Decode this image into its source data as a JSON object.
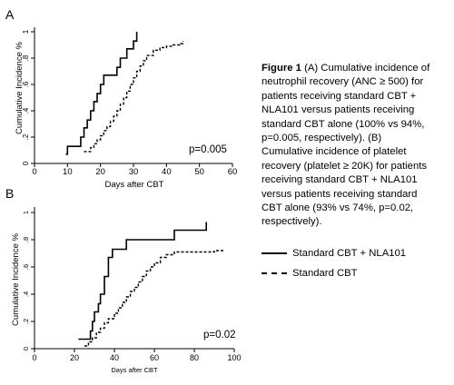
{
  "figure": {
    "caption": {
      "bold": "Figure 1",
      "text": " (A) Cumulative incidence of neutrophil recovery (ANC ≥ 500) for patients receiving standard CBT + NLA101 versus patients receiving standard CBT alone (100% vs 94%, p=0.005, respectively).  (B) Cumulative incidence of platelet recovery (platelet ≥ 20K) for patients receiving standard CBT + NLA101 versus patients receiving standard CBT alone (93% vs 74%, p=0.02, respectively)."
    },
    "legend": [
      {
        "label": "Standard CBT + NLA101",
        "style": "solid"
      },
      {
        "label": "Standard CBT",
        "style": "dashed"
      }
    ]
  },
  "chart_data": [
    {
      "panel_label": "A",
      "type": "line",
      "step": true,
      "xlabel": "Days after CBT",
      "ylabel": "Cumulative Incidence %",
      "xlim": [
        0,
        60
      ],
      "ylim": [
        0,
        1
      ],
      "xticks": [
        "0",
        "10",
        "20",
        "30",
        "40",
        "50",
        "60"
      ],
      "yticks": [
        "0",
        ".2",
        ".4",
        ".6",
        ".8",
        "1"
      ],
      "annotation": "p=0.005",
      "grid": false,
      "series": [
        {
          "name": "Standard CBT + NLA101",
          "style": "solid",
          "x": [
            9.5,
            10,
            14,
            15,
            16,
            17,
            18,
            19,
            20,
            21,
            24,
            25,
            26,
            28,
            29,
            30,
            31
          ],
          "y": [
            0.07,
            0.13,
            0.2,
            0.27,
            0.33,
            0.4,
            0.47,
            0.53,
            0.6,
            0.67,
            0.67,
            0.73,
            0.8,
            0.87,
            0.87,
            0.93,
            1.0
          ]
        },
        {
          "name": "Standard CBT",
          "style": "dashed",
          "x": [
            15,
            17,
            18,
            19,
            20,
            21,
            22,
            23,
            24,
            25,
            26,
            27,
            28,
            29,
            30,
            31,
            32,
            33,
            34,
            36,
            38,
            40,
            42,
            44,
            45
          ],
          "y": [
            0.09,
            0.12,
            0.15,
            0.18,
            0.21,
            0.25,
            0.28,
            0.32,
            0.36,
            0.4,
            0.45,
            0.5,
            0.55,
            0.6,
            0.65,
            0.7,
            0.74,
            0.78,
            0.82,
            0.86,
            0.88,
            0.89,
            0.9,
            0.91,
            0.93
          ]
        }
      ]
    },
    {
      "panel_label": "B",
      "type": "line",
      "step": true,
      "xlabel": "Days after CBT",
      "ylabel": "Cumulative Incidence %",
      "xlim": [
        0,
        100
      ],
      "ylim": [
        0,
        1
      ],
      "xticks": [
        "0",
        "20",
        "40",
        "60",
        "80",
        "100"
      ],
      "yticks": [
        "0",
        ".2",
        ".4",
        ".6",
        ".8",
        "1"
      ],
      "annotation": "p=0.02",
      "grid": false,
      "series": [
        {
          "name": "Standard CBT + NLA101",
          "style": "solid",
          "x": [
            22,
            27,
            28,
            29,
            30,
            32,
            33,
            35,
            37,
            39,
            46,
            70,
            86
          ],
          "y": [
            0.07,
            0.07,
            0.13,
            0.2,
            0.27,
            0.33,
            0.4,
            0.53,
            0.67,
            0.73,
            0.8,
            0.87,
            0.93
          ]
        },
        {
          "name": "Standard CBT",
          "style": "dashed",
          "x": [
            25,
            27,
            29,
            31,
            33,
            35,
            37,
            40,
            42,
            44,
            46,
            48,
            50,
            52,
            54,
            56,
            58,
            60,
            63,
            66,
            70,
            80,
            90,
            95
          ],
          "y": [
            0.02,
            0.05,
            0.08,
            0.12,
            0.15,
            0.19,
            0.22,
            0.26,
            0.3,
            0.34,
            0.38,
            0.42,
            0.45,
            0.49,
            0.53,
            0.57,
            0.6,
            0.63,
            0.67,
            0.69,
            0.71,
            0.71,
            0.72,
            0.72
          ]
        }
      ]
    }
  ]
}
